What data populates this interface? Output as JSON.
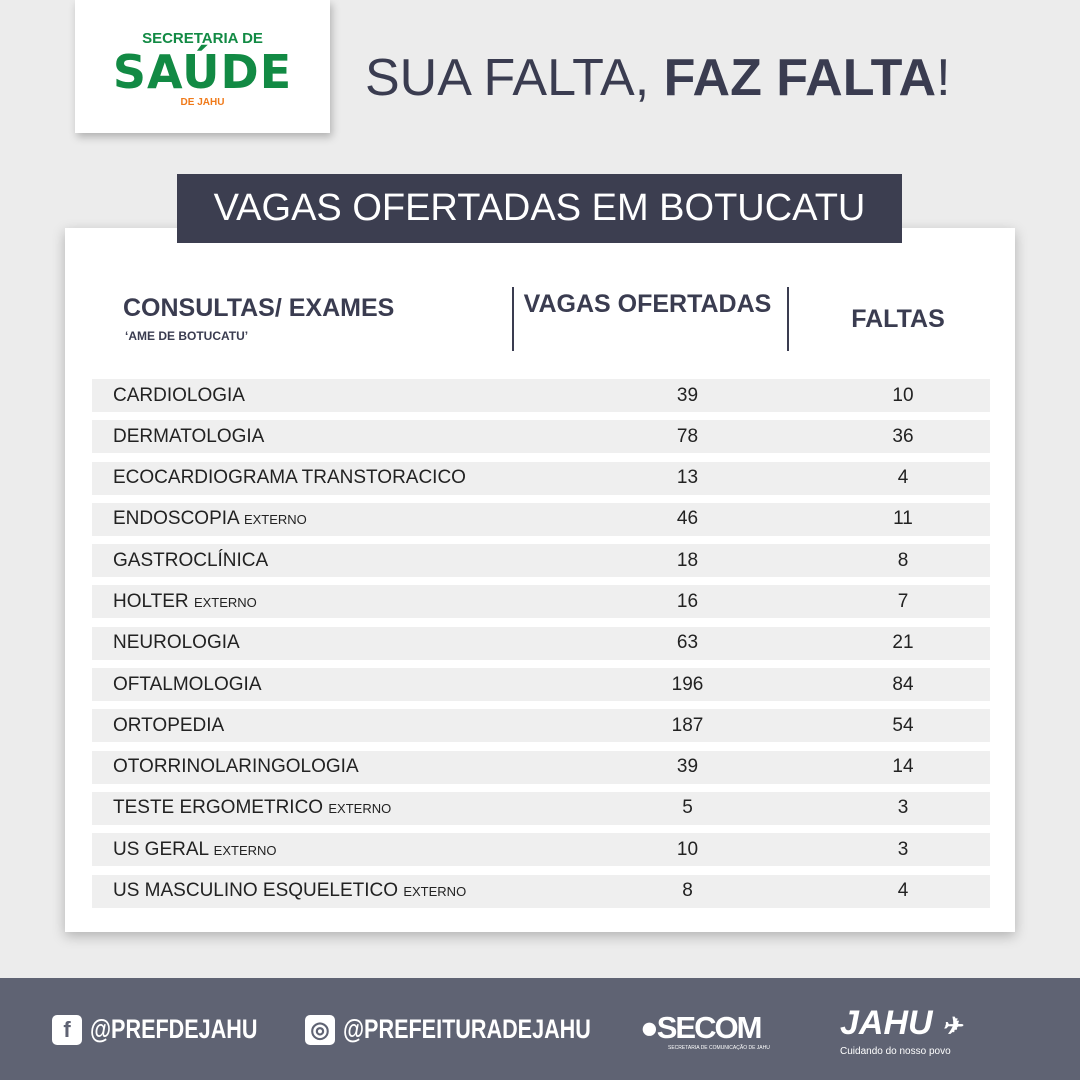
{
  "logo": {
    "line1": "SECRETARIA DE",
    "line2": "SAÚDE",
    "line3": "DE JAHU"
  },
  "headline": {
    "normal": "SUA FALTA, ",
    "bold": "FAZ FALTA",
    "end": "!"
  },
  "title": "VAGAS OFERTADAS EM BOTUCATU",
  "table": {
    "headers": {
      "col1": "CONSULTAS/ EXAMES",
      "col1_sub": "‘AME DE BOTUCATU’",
      "col2": "VAGAS OFERTADAS",
      "col3": "FALTAS"
    },
    "rows": [
      {
        "name": "CARDIOLOGIA",
        "note": "",
        "vagas": "39",
        "faltas": "10"
      },
      {
        "name": "DERMATOLOGIA",
        "note": "",
        "vagas": "78",
        "faltas": "36"
      },
      {
        "name": "ECOCARDIOGRAMA TRANSTORACICO",
        "note": "",
        "vagas": "13",
        "faltas": "4"
      },
      {
        "name": "ENDOSCOPIA",
        "note": "EXTERNO",
        "vagas": "46",
        "faltas": "11"
      },
      {
        "name": "GASTROCLÍNICA",
        "note": "",
        "vagas": "18",
        "faltas": "8"
      },
      {
        "name": "HOLTER",
        "note": "EXTERNO",
        "vagas": "16",
        "faltas": "7"
      },
      {
        "name": "NEUROLOGIA",
        "note": "",
        "vagas": "63",
        "faltas": "21"
      },
      {
        "name": "OFTALMOLOGIA",
        "note": "",
        "vagas": "196",
        "faltas": "84"
      },
      {
        "name": "ORTOPEDIA",
        "note": "",
        "vagas": "187",
        "faltas": "54"
      },
      {
        "name": "OTORRINOLARINGOLOGIA",
        "note": "",
        "vagas": "39",
        "faltas": "14"
      },
      {
        "name": "TESTE ERGOMETRICO",
        "note": "EXTERNO",
        "vagas": "5",
        "faltas": "3"
      },
      {
        "name": "US GERAL",
        "note": "EXTERNO",
        "vagas": "10",
        "faltas": "3"
      },
      {
        "name": "US MASCULINO ESQUELETICO",
        "note": "EXTERNO",
        "vagas": "8",
        "faltas": "4"
      }
    ]
  },
  "footer": {
    "facebook": "@PREFDEJAHU",
    "instagram": "@PREFEITURADEJAHU",
    "secom": "SECOM",
    "secom_sub": "SECRETARIA DE COMUNICAÇÃO DE JAHU",
    "jahu": "JAHU",
    "jahu_sub": "Cuidando do nosso povo"
  },
  "colors": {
    "green": "#128a44",
    "orange": "#f07a1a",
    "dark": "#3c3e50",
    "footer": "#5f6373"
  }
}
